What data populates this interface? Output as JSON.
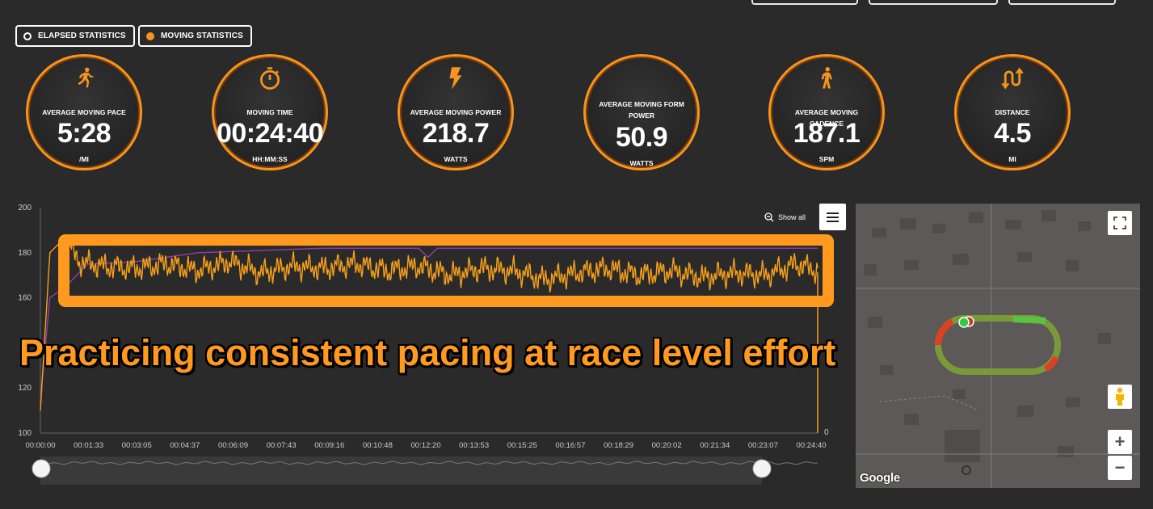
{
  "toggles": [
    {
      "label": "ELAPSED STATISTICS",
      "active": false
    },
    {
      "label": "MOVING STATISTICS",
      "active": true
    }
  ],
  "stats": [
    {
      "icon": "running-icon",
      "label": "AVERAGE MOVING PACE",
      "value": "5:28",
      "unit": "/MI"
    },
    {
      "icon": "stopwatch-icon",
      "label": "MOVING TIME",
      "value": "00:24:40",
      "unit": "HH:MM:SS"
    },
    {
      "icon": "lightning-icon",
      "label": "AVERAGE MOVING POWER",
      "value": "218.7",
      "unit": "WATTS"
    },
    {
      "icon": "form-power-icon",
      "label": "AVERAGE MOVING FORM POWER",
      "value": "50.9",
      "unit": "WATTS"
    },
    {
      "icon": "walking-icon",
      "label": "AVERAGE MOVING CADENCE",
      "value": "187.1",
      "unit": "SPM"
    },
    {
      "icon": "distance-arrows-icon",
      "label": "DISTANCE",
      "value": "4.5",
      "unit": "MI"
    }
  ],
  "chart": {
    "show_all_label": "Show all",
    "caption": "Practicing consistent pacing at race level effort",
    "colors": {
      "cadence": "#f7a01a",
      "secondary": "#8a3fa0",
      "highlight": "#ff9a1e"
    }
  },
  "chart_data": {
    "type": "line",
    "title": "",
    "xlabel": "",
    "ylabel": "",
    "ylim": [
      100,
      200
    ],
    "yticks": [
      "200",
      "180",
      "160",
      "120",
      "100"
    ],
    "right_axis_ticks": [
      "0"
    ],
    "x_ticks": [
      "00:00:00",
      "00:01:33",
      "00:03:05",
      "00:04:37",
      "00:06:09",
      "00:07:43",
      "00:09:16",
      "00:10:48",
      "00:12:20",
      "00:13:53",
      "00:15:25",
      "00:16:57",
      "00:18:29",
      "00:20:02",
      "00:21:34",
      "00:23:07",
      "00:24:40"
    ],
    "series": [
      {
        "role": "cadence",
        "x": [
          0,
          0.3,
          0.8,
          1.2,
          2,
          3,
          4,
          5,
          6,
          7,
          8,
          9,
          10,
          11,
          12,
          13,
          14,
          15,
          16,
          17,
          18,
          19,
          20,
          21,
          22,
          23,
          24,
          24.67
        ],
        "y": [
          110,
          180,
          187,
          176,
          174,
          173,
          175,
          172,
          176,
          171,
          174,
          173,
          175,
          172,
          174,
          170,
          173,
          172,
          168,
          171,
          173,
          170,
          172,
          169,
          171,
          170,
          175,
          172
        ]
      },
      {
        "role": "secondary",
        "x": [
          0,
          0.3,
          0.8,
          1.5,
          3,
          5,
          7,
          9,
          11,
          12,
          12.3,
          12.6,
          14,
          16,
          18,
          20,
          22,
          24,
          24.67
        ],
        "y": [
          115,
          160,
          165,
          175,
          176,
          180,
          181,
          182,
          182,
          182,
          178,
          182,
          182,
          182,
          182,
          182,
          182,
          182,
          182
        ]
      }
    ]
  },
  "map": {
    "attribution": "Google",
    "zoom_in": "+",
    "zoom_out": "−"
  }
}
